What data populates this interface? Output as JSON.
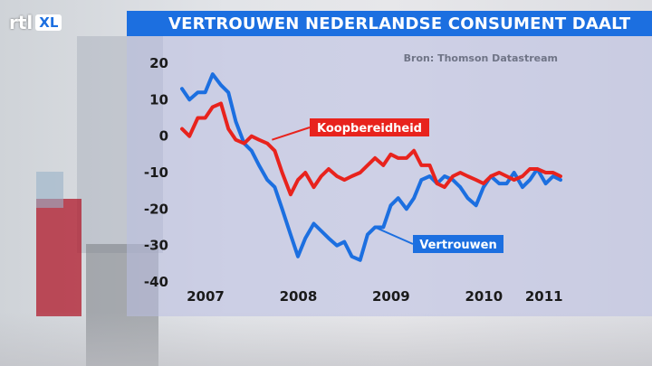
{
  "header": {
    "logo_main": "rtl",
    "logo_sub": "XL",
    "title": "VERTROUWEN NEDERLANDSE CONSUMENT DAALT"
  },
  "source": "Bron: Thomson Datastream",
  "colors": {
    "accent": "#1c6fe0",
    "koopbereidheid": "#e8231d",
    "vertrouwen": "#1c6fe0"
  },
  "chart_data": {
    "type": "line",
    "title": "VERTROUWEN NEDERLANDSE CONSUMENT DAALT",
    "xlabel": "",
    "ylabel": "",
    "xlim": [
      2007.0,
      2011.1
    ],
    "ylim": [
      -40,
      20
    ],
    "yticks": [
      20,
      10,
      0,
      -10,
      -20,
      -30,
      -40
    ],
    "xticks": [
      2007,
      2008,
      2009,
      2010,
      2011
    ],
    "xtick_labels": [
      "2007",
      "2008",
      "2009",
      "2010",
      "2011"
    ],
    "grid": false,
    "series": [
      {
        "name": "Vertrouwen",
        "x": [
          2007.0,
          2007.08,
          2007.17,
          2007.25,
          2007.33,
          2007.42,
          2007.5,
          2007.58,
          2007.67,
          2007.75,
          2007.83,
          2007.92,
          2008.0,
          2008.08,
          2008.17,
          2008.25,
          2008.33,
          2008.42,
          2008.5,
          2008.58,
          2008.67,
          2008.75,
          2008.83,
          2008.92,
          2009.0,
          2009.08,
          2009.17,
          2009.25,
          2009.33,
          2009.42,
          2009.5,
          2009.58,
          2009.67,
          2009.75,
          2009.83,
          2009.92,
          2010.0,
          2010.08,
          2010.17,
          2010.25,
          2010.33,
          2010.42,
          2010.5,
          2010.58,
          2010.67,
          2010.75,
          2010.83,
          2010.92,
          2011.0,
          2011.08
        ],
        "values": [
          13,
          10,
          12,
          12,
          17,
          14,
          12,
          4,
          -2,
          -4,
          -8,
          -12,
          -14,
          -20,
          -27,
          -33,
          -28,
          -24,
          -26,
          -28,
          -30,
          -29,
          -33,
          -34,
          -27,
          -25,
          -25,
          -19,
          -17,
          -20,
          -17,
          -12,
          -11,
          -13,
          -11,
          -12,
          -14,
          -17,
          -19,
          -14,
          -11,
          -13,
          -13,
          -10,
          -14,
          -12,
          -9,
          -13,
          -11,
          -12
        ]
      },
      {
        "name": "Koopbereidheid",
        "x": [
          2007.0,
          2007.08,
          2007.17,
          2007.25,
          2007.33,
          2007.42,
          2007.5,
          2007.58,
          2007.67,
          2007.75,
          2007.83,
          2007.92,
          2008.0,
          2008.08,
          2008.17,
          2008.25,
          2008.33,
          2008.42,
          2008.5,
          2008.58,
          2008.67,
          2008.75,
          2008.83,
          2008.92,
          2009.0,
          2009.08,
          2009.17,
          2009.25,
          2009.33,
          2009.42,
          2009.5,
          2009.58,
          2009.67,
          2009.75,
          2009.83,
          2009.92,
          2010.0,
          2010.08,
          2010.17,
          2010.25,
          2010.33,
          2010.42,
          2010.5,
          2010.58,
          2010.67,
          2010.75,
          2010.83,
          2010.92,
          2011.0,
          2011.08
        ],
        "values": [
          2,
          0,
          5,
          5,
          8,
          9,
          2,
          -1,
          -2,
          0,
          -1,
          -2,
          -4,
          -10,
          -16,
          -12,
          -10,
          -14,
          -11,
          -9,
          -11,
          -12,
          -11,
          -10,
          -8,
          -6,
          -8,
          -5,
          -6,
          -6,
          -4,
          -8,
          -8,
          -13,
          -14,
          -11,
          -10,
          -11,
          -12,
          -13,
          -11,
          -10,
          -11,
          -12,
          -11,
          -9,
          -9,
          -10,
          -10,
          -11
        ]
      }
    ],
    "annotations": [
      {
        "text": "Koopbereidheid",
        "series": "Koopbereidheid",
        "color": "#e8231d"
      },
      {
        "text": "Vertrouwen",
        "series": "Vertrouwen",
        "color": "#1c6fe0"
      }
    ]
  }
}
